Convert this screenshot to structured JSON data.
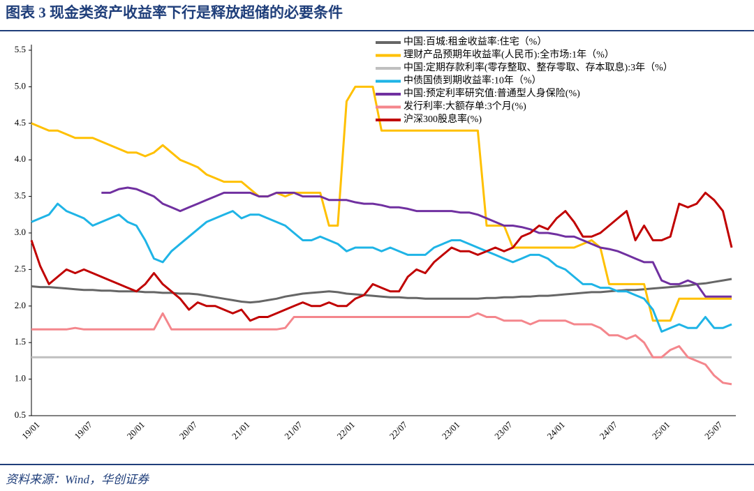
{
  "chart_data": {
    "type": "line",
    "title": "图表 3   现金类资产收益率下行是释放超储的必要条件",
    "source": "资料来源：Wind，华创证券",
    "categories": [
      "19/01",
      null,
      null,
      null,
      null,
      null,
      "19/07",
      null,
      null,
      null,
      null,
      null,
      "20/01",
      null,
      null,
      null,
      null,
      null,
      "20/07",
      null,
      null,
      null,
      null,
      null,
      "21/01",
      null,
      null,
      null,
      null,
      null,
      "21/07",
      null,
      null,
      null,
      null,
      null,
      "22/01",
      null,
      null,
      null,
      null,
      null,
      "22/07",
      null,
      null,
      null,
      null,
      null,
      "23/01",
      null,
      null,
      null,
      null,
      null,
      "23/07",
      null,
      null,
      null,
      null,
      null,
      "24/01",
      null,
      null,
      null,
      null,
      null,
      "24/07",
      null,
      null,
      null,
      null,
      null,
      "25/01",
      null,
      null,
      null,
      null,
      null,
      "25/07",
      null,
      null
    ],
    "ylim": [
      0.5,
      5.5
    ],
    "yticks": [
      0.5,
      {
        "value": 1,
        "label": "1.0"
      },
      1.5,
      {
        "value": 2,
        "label": "2.0"
      },
      2.5,
      {
        "value": 3,
        "label": "3.0"
      },
      3.5,
      {
        "value": 4,
        "label": "4.0"
      },
      4.5,
      {
        "value": 5,
        "label": "5.0"
      },
      5.5
    ],
    "grid": false,
    "legend": "top",
    "series": [
      {
        "name": "中国:百城:租金收益率:住宅（%）",
        "color": "#666666",
        "values": [
          2.27,
          2.26,
          2.26,
          2.25,
          2.24,
          2.23,
          2.22,
          2.22,
          2.21,
          2.21,
          2.2,
          2.2,
          2.2,
          2.19,
          2.19,
          2.18,
          2.18,
          2.17,
          2.17,
          2.16,
          2.14,
          2.12,
          2.1,
          2.08,
          2.06,
          2.05,
          2.06,
          2.08,
          2.1,
          2.13,
          2.15,
          2.17,
          2.18,
          2.19,
          2.2,
          2.19,
          2.17,
          2.16,
          2.15,
          2.14,
          2.13,
          2.12,
          2.12,
          2.11,
          2.11,
          2.1,
          2.1,
          2.1,
          2.1,
          2.1,
          2.1,
          2.1,
          2.11,
          2.11,
          2.12,
          2.12,
          2.13,
          2.13,
          2.14,
          2.14,
          2.15,
          2.16,
          2.17,
          2.18,
          2.19,
          2.19,
          2.2,
          2.21,
          2.22,
          2.22,
          2.23,
          2.24,
          2.25,
          2.26,
          2.27,
          2.28,
          2.3,
          2.31,
          2.33,
          2.35,
          2.37
        ]
      },
      {
        "name": "理财产品预期年收益率(人民币):全市场:1年（%）",
        "color": "#ffc000",
        "values": [
          4.5,
          4.45,
          4.4,
          4.4,
          4.35,
          4.3,
          4.3,
          4.3,
          4.25,
          4.2,
          4.15,
          4.1,
          4.1,
          4.05,
          4.1,
          4.2,
          4.1,
          4.0,
          3.95,
          3.9,
          3.8,
          3.75,
          3.7,
          3.7,
          3.7,
          3.6,
          3.5,
          3.5,
          3.55,
          3.5,
          3.55,
          3.55,
          3.55,
          3.55,
          3.1,
          3.1,
          4.8,
          5.0,
          5.0,
          5.0,
          4.4,
          4.4,
          4.4,
          4.4,
          4.4,
          4.4,
          4.4,
          4.4,
          4.4,
          4.4,
          4.4,
          4.4,
          3.1,
          3.1,
          3.1,
          2.8,
          2.8,
          2.8,
          2.8,
          2.8,
          2.8,
          2.8,
          2.8,
          2.85,
          2.9,
          2.8,
          2.3,
          2.3,
          2.3,
          2.3,
          2.3,
          1.8,
          1.8,
          1.8,
          2.1,
          2.1,
          2.1,
          2.1,
          2.1,
          2.1,
          2.1
        ]
      },
      {
        "name": "中国:定期存款利率(零存整取、整存零取、存本取息):3年（%）",
        "color": "#bfbfbf",
        "values": [
          1.3,
          1.3,
          1.3,
          1.3,
          1.3,
          1.3,
          1.3,
          1.3,
          1.3,
          1.3,
          1.3,
          1.3,
          1.3,
          1.3,
          1.3,
          1.3,
          1.3,
          1.3,
          1.3,
          1.3,
          1.3,
          1.3,
          1.3,
          1.3,
          1.3,
          1.3,
          1.3,
          1.3,
          1.3,
          1.3,
          1.3,
          1.3,
          1.3,
          1.3,
          1.3,
          1.3,
          1.3,
          1.3,
          1.3,
          1.3,
          1.3,
          1.3,
          1.3,
          1.3,
          1.3,
          1.3,
          1.3,
          1.3,
          1.3,
          1.3,
          1.3,
          1.3,
          1.3,
          1.3,
          1.3,
          1.3,
          1.3,
          1.3,
          1.3,
          1.3,
          1.3,
          1.3,
          1.3,
          1.3,
          1.3,
          1.3,
          1.3,
          1.3,
          1.3,
          1.3,
          1.3,
          1.3,
          1.3,
          1.3,
          1.3,
          1.3,
          1.3,
          1.3,
          1.3,
          1.3,
          1.3
        ]
      },
      {
        "name": "中债国债到期收益率:10年（%）",
        "color": "#1fb4e6",
        "values": [
          3.15,
          3.2,
          3.25,
          3.4,
          3.3,
          3.25,
          3.2,
          3.1,
          3.15,
          3.2,
          3.25,
          3.15,
          3.1,
          2.9,
          2.65,
          2.6,
          2.75,
          2.85,
          2.95,
          3.05,
          3.15,
          3.2,
          3.25,
          3.3,
          3.2,
          3.25,
          3.25,
          3.2,
          3.15,
          3.1,
          3.0,
          2.9,
          2.9,
          2.95,
          2.9,
          2.85,
          2.75,
          2.8,
          2.8,
          2.8,
          2.75,
          2.8,
          2.75,
          2.7,
          2.7,
          2.7,
          2.8,
          2.85,
          2.9,
          2.9,
          2.85,
          2.8,
          2.75,
          2.7,
          2.65,
          2.6,
          2.65,
          2.7,
          2.7,
          2.65,
          2.55,
          2.5,
          2.4,
          2.3,
          2.3,
          2.25,
          2.25,
          2.2,
          2.2,
          2.15,
          2.1,
          1.95,
          1.65,
          1.7,
          1.75,
          1.7,
          1.7,
          1.85,
          1.7,
          1.7,
          1.75
        ]
      },
      {
        "name": "中国:预定利率研究值:普通型人身保险(%)",
        "color": "#7030a0",
        "values": [
          null,
          null,
          null,
          null,
          null,
          null,
          null,
          null,
          3.55,
          3.55,
          3.6,
          3.62,
          3.6,
          3.55,
          3.5,
          3.4,
          3.35,
          3.3,
          3.35,
          3.4,
          3.45,
          3.5,
          3.55,
          3.55,
          3.55,
          3.55,
          3.5,
          3.5,
          3.55,
          3.55,
          3.55,
          3.5,
          3.5,
          3.5,
          3.45,
          3.45,
          3.45,
          3.42,
          3.4,
          3.4,
          3.38,
          3.35,
          3.35,
          3.33,
          3.3,
          3.3,
          3.3,
          3.3,
          3.3,
          3.28,
          3.28,
          3.25,
          3.2,
          3.15,
          3.1,
          3.1,
          3.08,
          3.05,
          3.0,
          3.0,
          2.98,
          2.95,
          2.95,
          2.9,
          2.85,
          2.8,
          2.78,
          2.75,
          2.7,
          2.65,
          2.6,
          2.6,
          2.35,
          2.3,
          2.3,
          2.35,
          2.3,
          2.13,
          2.13,
          2.13,
          2.13
        ]
      },
      {
        "name": "发行利率:大额存单:3个月(%)",
        "color": "#f4868c",
        "values": [
          1.68,
          1.68,
          1.68,
          1.68,
          1.68,
          1.7,
          1.68,
          1.68,
          1.68,
          1.68,
          1.68,
          1.68,
          1.68,
          1.68,
          1.68,
          1.9,
          1.68,
          1.68,
          1.68,
          1.68,
          1.68,
          1.68,
          1.68,
          1.68,
          1.68,
          1.68,
          1.68,
          1.68,
          1.68,
          1.7,
          1.85,
          1.85,
          1.85,
          1.85,
          1.85,
          1.85,
          1.85,
          1.85,
          1.85,
          1.85,
          1.85,
          1.85,
          1.85,
          1.85,
          1.85,
          1.85,
          1.85,
          1.85,
          1.85,
          1.85,
          1.85,
          1.9,
          1.85,
          1.85,
          1.8,
          1.8,
          1.8,
          1.75,
          1.8,
          1.8,
          1.8,
          1.8,
          1.75,
          1.75,
          1.75,
          1.7,
          1.6,
          1.6,
          1.55,
          1.6,
          1.5,
          1.3,
          1.3,
          1.4,
          1.45,
          1.3,
          1.25,
          1.2,
          1.05,
          0.95,
          0.93
        ]
      },
      {
        "name": "沪深300股息率(%)",
        "color": "#c00000",
        "values": [
          2.9,
          2.55,
          2.3,
          2.4,
          2.5,
          2.45,
          2.5,
          2.45,
          2.4,
          2.35,
          2.3,
          2.25,
          2.2,
          2.3,
          2.45,
          2.3,
          2.2,
          2.1,
          1.95,
          2.05,
          2.0,
          2.0,
          1.95,
          1.9,
          1.95,
          1.8,
          1.85,
          1.85,
          1.9,
          1.95,
          2.0,
          2.05,
          2.0,
          2.0,
          2.05,
          2.0,
          2.0,
          2.1,
          2.15,
          2.3,
          2.25,
          2.2,
          2.2,
          2.4,
          2.5,
          2.45,
          2.6,
          2.7,
          2.8,
          2.75,
          2.75,
          2.7,
          2.75,
          2.8,
          2.75,
          2.8,
          2.95,
          3.0,
          3.1,
          3.05,
          3.2,
          3.3,
          3.15,
          2.95,
          2.95,
          3.0,
          3.1,
          3.2,
          3.3,
          2.9,
          3.1,
          2.9,
          2.9,
          2.95,
          3.4,
          3.35,
          3.4,
          3.55,
          3.45,
          3.3,
          2.8
        ]
      }
    ]
  }
}
